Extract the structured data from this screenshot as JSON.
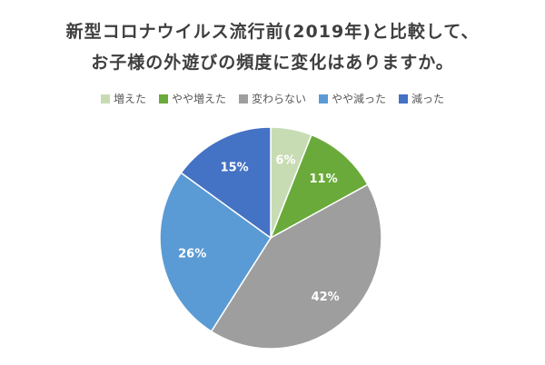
{
  "chart_data": {
    "type": "pie",
    "title_line1": "新型コロナウイルス流行前(2019年)と比較して、",
    "title_line2": "お子様の外遊びの頻度に変化はありますか。",
    "categories": [
      "増えた",
      "やや増えた",
      "変わらない",
      "やや減った",
      "減った"
    ],
    "values": [
      6,
      11,
      42,
      26,
      15
    ],
    "labels": [
      "6%",
      "11%",
      "42%",
      "26%",
      "15%"
    ],
    "colors": [
      "#c8dcb4",
      "#6aaa3a",
      "#9e9e9e",
      "#5b9bd5",
      "#4472c4"
    ],
    "legend_position": "top"
  }
}
